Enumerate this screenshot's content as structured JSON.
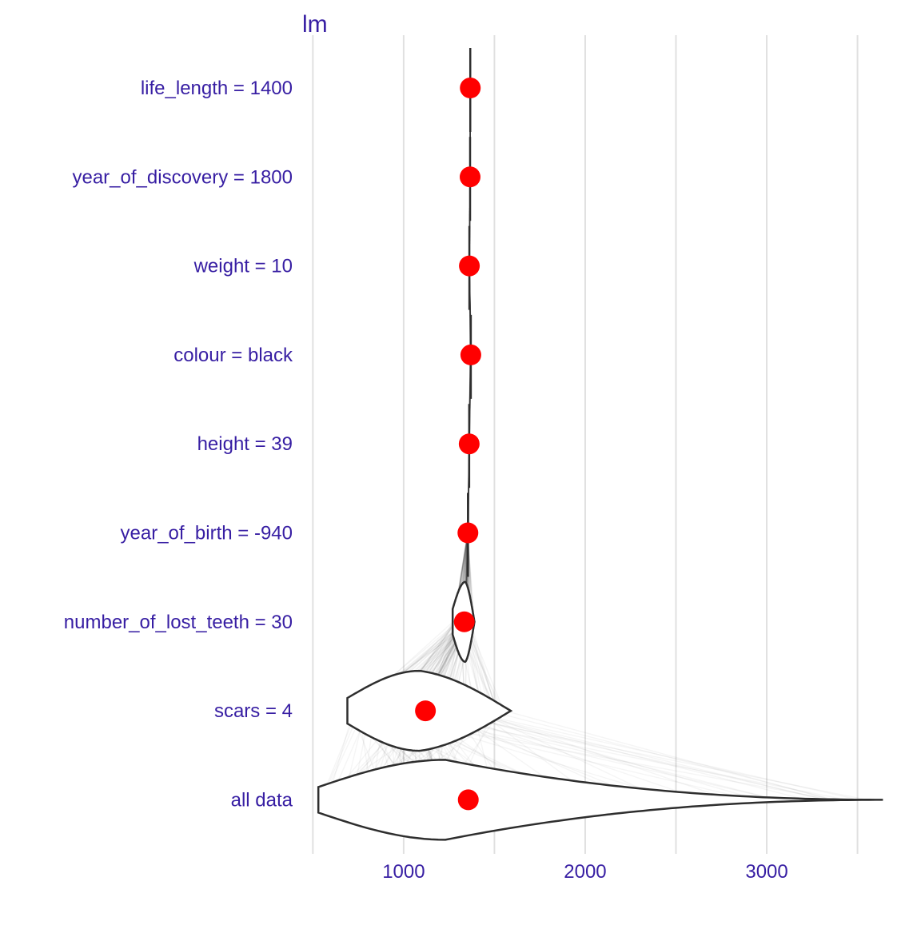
{
  "chart_data": {
    "type": "violin",
    "title": "lm",
    "xlabel": "",
    "ylabel": "",
    "xlim": [
      450,
      3700
    ],
    "x_ticks": [
      1000,
      2000,
      3000
    ],
    "x_tick_labels": [
      "1000",
      "2000",
      "3000"
    ],
    "grid": true,
    "colors": {
      "text": "#371ea3",
      "point": "#ff0000",
      "outline": "#2e2e2e",
      "grid": "#e0e0e0"
    },
    "categories": [
      "life_length = 1400",
      "year_of_discovery = 1800",
      "weight = 10",
      "colour = black",
      "height = 39",
      "year_of_birth = -940",
      "number_of_lost_teeth = 30",
      "scars = 4",
      "all data"
    ],
    "mean_prediction": [
      1367,
      1366,
      1362,
      1370,
      1361,
      1354,
      1334,
      1120,
      1356
    ],
    "distributions": [
      {
        "category": "life_length = 1400",
        "min": 1367,
        "max": 1367,
        "mode": 1367
      },
      {
        "category": "year_of_discovery = 1800",
        "min": 1366,
        "max": 1366,
        "mode": 1366
      },
      {
        "category": "weight = 10",
        "min": 1362,
        "max": 1362,
        "mode": 1362
      },
      {
        "category": "colour = black",
        "min": 1365,
        "max": 1375,
        "mode": 1370
      },
      {
        "category": "height = 39",
        "min": 1358,
        "max": 1364,
        "mode": 1361
      },
      {
        "category": "year_of_birth = -940",
        "min": 1350,
        "max": 1358,
        "mode": 1354
      },
      {
        "category": "number_of_lost_teeth = 30",
        "min": 1270,
        "max": 1390,
        "mode": 1340
      },
      {
        "category": "scars = 4",
        "min": 690,
        "max": 1590,
        "mode": 1090
      },
      {
        "category": "all data",
        "min": 530,
        "max": 3640,
        "mode": 1230
      }
    ]
  }
}
